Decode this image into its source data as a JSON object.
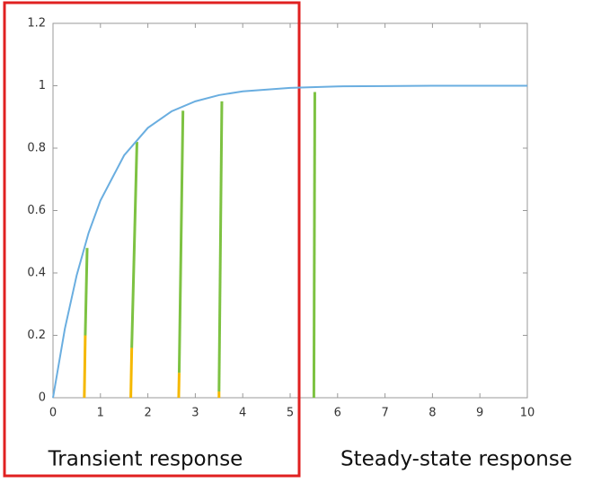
{
  "chart_data": {
    "type": "line",
    "x": [
      0,
      0.25,
      0.5,
      0.75,
      1,
      1.5,
      2,
      2.5,
      3,
      3.5,
      4,
      5,
      6,
      7,
      8,
      10
    ],
    "series": [
      {
        "color": "#6aaee0",
        "values": [
          0,
          0.221,
          0.393,
          0.528,
          0.632,
          0.777,
          0.865,
          0.918,
          0.95,
          0.97,
          0.982,
          0.993,
          0.998,
          0.999,
          1,
          1
        ]
      }
    ],
    "segments": [
      {
        "x0": 0.66,
        "x1": 0.68,
        "y0": 0,
        "y1": 0.2,
        "color": "#f5b800"
      },
      {
        "x0": 0.68,
        "x1": 0.72,
        "y0": 0.2,
        "y1": 0.48,
        "color": "#7dc242"
      },
      {
        "x0": 1.64,
        "x1": 1.66,
        "y0": 0,
        "y1": 0.16,
        "color": "#f5b800"
      },
      {
        "x0": 1.66,
        "x1": 1.77,
        "y0": 0.16,
        "y1": 0.82,
        "color": "#7dc242"
      },
      {
        "x0": 2.65,
        "x1": 2.66,
        "y0": 0,
        "y1": 0.08,
        "color": "#f5b800"
      },
      {
        "x0": 2.66,
        "x1": 2.74,
        "y0": 0.08,
        "y1": 0.92,
        "color": "#7dc242"
      },
      {
        "x0": 3.5,
        "x1": 3.5,
        "y0": 0,
        "y1": 0.02,
        "color": "#f5b800"
      },
      {
        "x0": 3.5,
        "x1": 3.56,
        "y0": 0.02,
        "y1": 0.95,
        "color": "#7dc242"
      },
      {
        "x0": 5.5,
        "x1": 5.52,
        "y0": 0,
        "y1": 0.98,
        "color": "#7dc242"
      }
    ],
    "xlim": [
      0,
      10
    ],
    "xticks": [
      0,
      1,
      2,
      3,
      4,
      5,
      6,
      7,
      8,
      9,
      10
    ],
    "ylim": [
      0,
      1.2
    ],
    "yticks": [
      0,
      0.2,
      0.4,
      0.6,
      0.8,
      1,
      1.2
    ],
    "annotations": [
      "Transient response",
      "Steady-state response"
    ]
  }
}
